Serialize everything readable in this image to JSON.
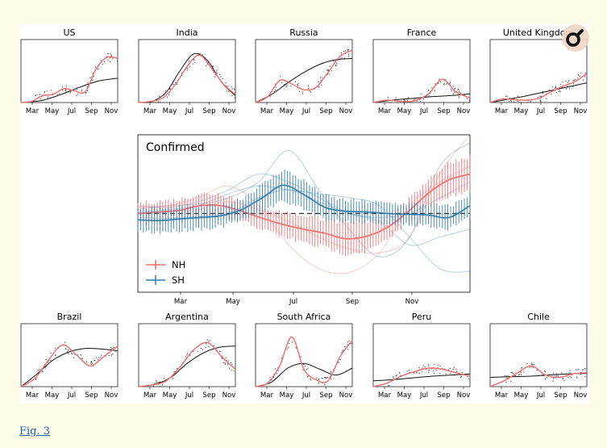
{
  "figure_link": "Fig. 3",
  "zoom_button": {
    "icon": "magnifier-icon"
  },
  "colors": {
    "nh": "#f26b6b",
    "sh": "#2e7bab",
    "fit": "#111111",
    "scatter": "#333333"
  },
  "chart_data": [
    {
      "type": "line",
      "title": "US",
      "xticks": [
        "Mar",
        "May",
        "Jul",
        "Sep",
        "Nov"
      ],
      "fit_line": [
        0,
        0.03,
        0.13,
        0.26,
        0.37,
        0.42
      ],
      "smoothed": [
        0,
        0.02,
        0.12,
        0.14,
        0.24,
        0.2,
        0.19,
        0.58,
        0.78,
        0.76
      ]
    },
    {
      "type": "line",
      "title": "India",
      "xticks": [
        "Mar",
        "May",
        "Jul",
        "Sep",
        "Nov"
      ],
      "fit_line": [
        0,
        0.02,
        0.18,
        0.55,
        0.84,
        0.72,
        0.35,
        0.12
      ],
      "smoothed": [
        0,
        0.02,
        0.08,
        0.3,
        0.62,
        0.82,
        0.6,
        0.32,
        0.14
      ]
    },
    {
      "type": "line",
      "title": "Russia",
      "xticks": [
        "Mar",
        "May",
        "Jul",
        "Sep",
        "Nov"
      ],
      "fit_line": [
        0,
        0.14,
        0.34,
        0.52,
        0.66,
        0.74,
        0.76
      ],
      "smoothed": [
        0,
        0.1,
        0.38,
        0.32,
        0.22,
        0.26,
        0.52,
        0.8,
        0.9
      ]
    },
    {
      "type": "line",
      "title": "France",
      "xticks": [
        "Mar",
        "May",
        "Jul",
        "Sep",
        "Nov"
      ],
      "fit_line": [
        0,
        0.04,
        0.07,
        0.1,
        0.12,
        0.15
      ],
      "smoothed": [
        0,
        0.04,
        0.02,
        0.03,
        0.15,
        0.4,
        0.18,
        0.08
      ]
    },
    {
      "type": "line",
      "title": "United Kingdom",
      "xticks": [
        "Mar",
        "May",
        "Jul",
        "Sep",
        "Nov"
      ],
      "fit_line": [
        0,
        0.05,
        0.1,
        0.16,
        0.22,
        0.28,
        0.34
      ],
      "smoothed": [
        0,
        0.06,
        0.05,
        0.04,
        0.07,
        0.18,
        0.28,
        0.36,
        0.5
      ]
    },
    {
      "type": "line",
      "title": "Confirmed",
      "xticks": [
        "Mar",
        "May",
        "Jul",
        "Sep",
        "Nov"
      ],
      "zero_line": 0,
      "ylim": [
        -1,
        1
      ],
      "legend": [
        "NH",
        "SH"
      ],
      "series": [
        {
          "name": "NH",
          "values": [
            0.0,
            0.02,
            0.04,
            0.1,
            0.1,
            0.03,
            -0.06,
            -0.14,
            -0.2,
            -0.25,
            -0.32,
            -0.29,
            -0.18,
            0.02,
            0.26,
            0.43,
            0.5
          ]
        },
        {
          "name": "SH",
          "values": [
            -0.08,
            -0.09,
            -0.07,
            -0.05,
            -0.03,
            0.05,
            0.2,
            0.36,
            0.24,
            0.08,
            0.03,
            0.02,
            0.0,
            -0.01,
            -0.02,
            -0.05,
            0.1
          ]
        }
      ]
    },
    {
      "type": "line",
      "title": "Brazil",
      "xticks": [
        "Mar",
        "May",
        "Jul",
        "Sep",
        "Nov"
      ],
      "fit_line": [
        0,
        0.22,
        0.46,
        0.6,
        0.66,
        0.65,
        0.62
      ],
      "smoothed": [
        0,
        0.14,
        0.46,
        0.72,
        0.55,
        0.36,
        0.52,
        0.7
      ]
    },
    {
      "type": "line",
      "title": "Argentina",
      "xticks": [
        "Mar",
        "May",
        "Jul",
        "Sep",
        "Nov"
      ],
      "fit_line": [
        0,
        0.04,
        0.16,
        0.4,
        0.58,
        0.68,
        0.7
      ],
      "smoothed": [
        0,
        0.03,
        0.1,
        0.34,
        0.64,
        0.76,
        0.52,
        0.3
      ]
    },
    {
      "type": "line",
      "title": "South Africa",
      "xticks": [
        "Mar",
        "May",
        "Jul",
        "Sep",
        "Nov"
      ],
      "fit_line": [
        0,
        0.08,
        0.32,
        0.4,
        0.3,
        0.2,
        0.32
      ],
      "smoothed": [
        0,
        0.06,
        0.36,
        0.86,
        0.3,
        0.12,
        0.1,
        0.52,
        0.8
      ]
    },
    {
      "type": "line",
      "title": "Peru",
      "xticks": [
        "Mar",
        "May",
        "Jul",
        "Sep",
        "Nov"
      ],
      "fit_line": [
        0.1,
        0.12,
        0.15,
        0.18,
        0.2,
        0.22
      ],
      "smoothed": [
        0,
        0.06,
        0.18,
        0.26,
        0.32,
        0.3,
        0.24,
        0.18
      ]
    },
    {
      "type": "line",
      "title": "Chile",
      "xticks": [
        "Mar",
        "May",
        "Jul",
        "Sep",
        "Nov"
      ],
      "fit_line": [
        0.16,
        0.17,
        0.18,
        0.2,
        0.22,
        0.23
      ],
      "smoothed": [
        0,
        0.1,
        0.24,
        0.36,
        0.2,
        0.16,
        0.22,
        0.24
      ]
    }
  ]
}
